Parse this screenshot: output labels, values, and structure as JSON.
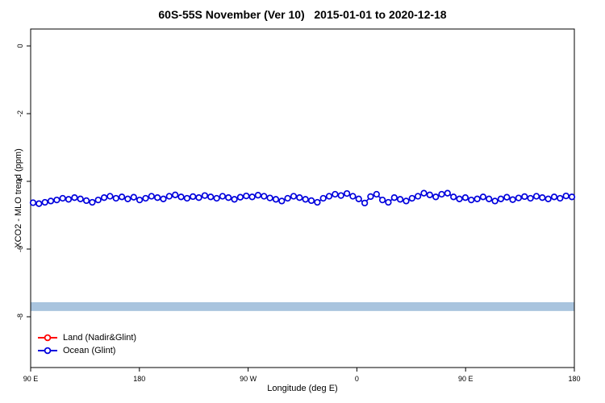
{
  "title": "60S-55S November (Ver 10)   2015-01-01 to 2020-12-18",
  "colors": {
    "land": "#ff0000",
    "ocean": "#0000dd",
    "band": "#a9c4de",
    "axis": "#000000",
    "plot_bg": "#ffffff"
  },
  "legend": {
    "land_label": "Land (Nadir&Glint)",
    "ocean_label": "Ocean (Glint)"
  },
  "chart_data": {
    "type": "line",
    "title": "60S-55S November (Ver 10)   2015-01-01 to 2020-12-18",
    "xlabel": "Longitude (deg E)",
    "ylabel": "XCO2 - MLO trend (ppm)",
    "grid": false,
    "legend_position": "bottom-left",
    "xlim": [
      90,
      540
    ],
    "ylim": [
      -9.5,
      0.5
    ],
    "x_ticks": {
      "labels": [
        "90 E",
        "180",
        "90 W",
        "0",
        "90 E",
        "180"
      ],
      "positions": [
        90,
        180,
        270,
        360,
        450,
        540
      ]
    },
    "y_ticks": {
      "labels": [
        "0",
        "-2",
        "-4",
        "-6",
        "-8"
      ],
      "values": [
        0,
        -2,
        -4,
        -6,
        -8
      ]
    },
    "band": {
      "y_center": -7.7,
      "half_height": 0.13,
      "color": "#a9c4de"
    },
    "series": [
      {
        "name": "Land (Nadir&Glint)",
        "color": "#ff0000",
        "marker": "open-circle",
        "values": []
      },
      {
        "name": "Ocean (Glint)",
        "color": "#0000dd",
        "marker": "open-circle",
        "x_start": 92,
        "x_end": 538,
        "values": [
          -4.63,
          -4.66,
          -4.62,
          -4.58,
          -4.55,
          -4.5,
          -4.53,
          -4.48,
          -4.52,
          -4.57,
          -4.62,
          -4.55,
          -4.48,
          -4.44,
          -4.5,
          -4.46,
          -4.52,
          -4.47,
          -4.55,
          -4.5,
          -4.44,
          -4.48,
          -4.52,
          -4.44,
          -4.4,
          -4.46,
          -4.5,
          -4.45,
          -4.48,
          -4.42,
          -4.46,
          -4.5,
          -4.44,
          -4.48,
          -4.53,
          -4.47,
          -4.43,
          -4.46,
          -4.41,
          -4.44,
          -4.49,
          -4.53,
          -4.58,
          -4.5,
          -4.44,
          -4.48,
          -4.53,
          -4.57,
          -4.62,
          -4.5,
          -4.44,
          -4.38,
          -4.42,
          -4.36,
          -4.44,
          -4.52,
          -4.64,
          -4.45,
          -4.38,
          -4.55,
          -4.62,
          -4.48,
          -4.53,
          -4.58,
          -4.5,
          -4.44,
          -4.35,
          -4.4,
          -4.46,
          -4.38,
          -4.35,
          -4.46,
          -4.52,
          -4.48,
          -4.55,
          -4.52,
          -4.46,
          -4.52,
          -4.58,
          -4.52,
          -4.47,
          -4.54,
          -4.49,
          -4.45,
          -4.5,
          -4.44,
          -4.48,
          -4.52,
          -4.46,
          -4.5,
          -4.43,
          -4.46
        ]
      }
    ]
  }
}
